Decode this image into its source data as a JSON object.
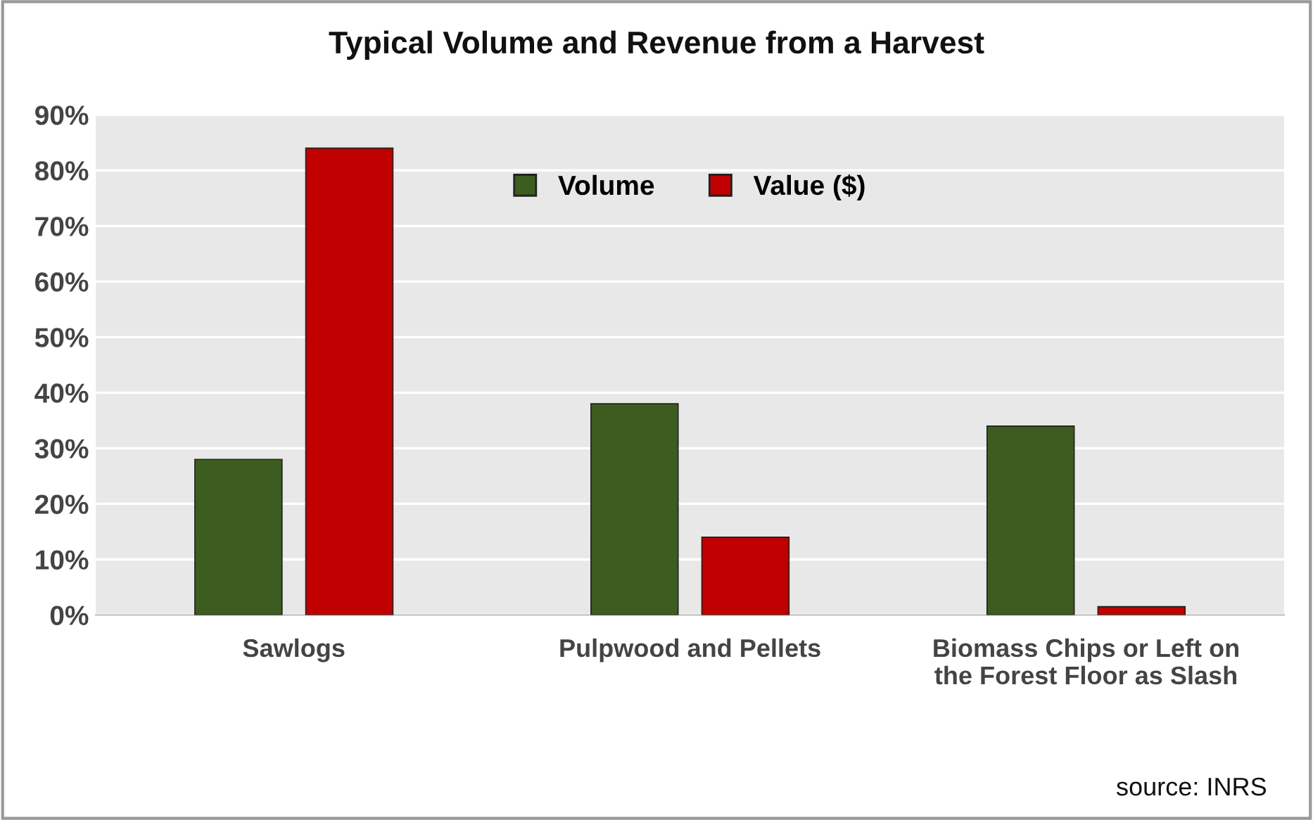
{
  "chart_data": {
    "type": "bar",
    "title": "Typical Volume and Revenue from a Harvest",
    "categories": [
      "Sawlogs",
      "Pulpwood and Pellets",
      "Biomass Chips or Left on\nthe Forest Floor as Slash"
    ],
    "series": [
      {
        "name": "Volume",
        "color": "#3d5c1f",
        "values": [
          28,
          38,
          34
        ]
      },
      {
        "name": "Value ($)",
        "color": "#c00000",
        "values": [
          84,
          14,
          1.5
        ]
      }
    ],
    "ylim": [
      0,
      90
    ],
    "yticks": [
      {
        "value": 0,
        "label": "0%"
      },
      {
        "value": 10,
        "label": "10%"
      },
      {
        "value": 20,
        "label": "20%"
      },
      {
        "value": 30,
        "label": "30%"
      },
      {
        "value": 40,
        "label": "40%"
      },
      {
        "value": 50,
        "label": "50%"
      },
      {
        "value": 60,
        "label": "60%"
      },
      {
        "value": 70,
        "label": "70%"
      },
      {
        "value": 80,
        "label": "80%"
      },
      {
        "value": 90,
        "label": "90%"
      }
    ],
    "grid": "y",
    "legend": "top",
    "annotations": [
      "source: INRS"
    ]
  }
}
